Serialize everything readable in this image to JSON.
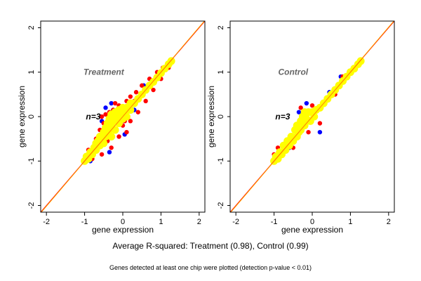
{
  "chart_data": [
    {
      "type": "scatter",
      "panel_label": "Treatment",
      "n_label": "n=3",
      "xlabel": "gene expression",
      "ylabel": "gene expression",
      "xlim": [
        -2.15,
        2.15
      ],
      "ylim": [
        -2.15,
        2.15
      ],
      "xticks": [
        "-2",
        "-1",
        "0",
        "1",
        "2"
      ],
      "yticks": [
        "-2",
        "-1",
        "0",
        "1",
        "2"
      ],
      "grid": false,
      "reference_line": "y = x",
      "series": [
        {
          "color": "#0000ff",
          "points": [
            [
              -0.3,
              0.3
            ],
            [
              -0.55,
              -0.1
            ],
            [
              -0.35,
              -0.8
            ],
            [
              0.3,
              0.15
            ],
            [
              0.05,
              -0.4
            ],
            [
              0.55,
              0.7
            ],
            [
              -0.45,
              0.2
            ],
            [
              -0.85,
              -1.0
            ],
            [
              -0.25,
              0.15
            ]
          ]
        },
        {
          "color": "#ff0000",
          "points": [
            [
              -0.55,
              0.0
            ],
            [
              -0.45,
              0.05
            ],
            [
              -0.35,
              0.1
            ],
            [
              -0.25,
              0.15
            ],
            [
              -0.2,
              0.3
            ],
            [
              -0.1,
              0.25
            ],
            [
              0.1,
              0.35
            ],
            [
              0.2,
              0.45
            ],
            [
              0.35,
              0.55
            ],
            [
              0.5,
              0.7
            ],
            [
              0.7,
              0.85
            ],
            [
              0.9,
              1.0
            ],
            [
              1.05,
              1.1
            ],
            [
              -0.6,
              -0.3
            ],
            [
              -0.7,
              -0.5
            ],
            [
              -0.9,
              -0.75
            ],
            [
              -0.5,
              -0.15
            ],
            [
              0.0,
              -0.2
            ],
            [
              0.1,
              -0.35
            ],
            [
              -0.1,
              -0.45
            ],
            [
              -0.3,
              -0.7
            ],
            [
              -0.55,
              -0.85
            ],
            [
              0.2,
              -0.1
            ],
            [
              0.4,
              0.1
            ],
            [
              0.6,
              0.35
            ],
            [
              0.8,
              0.6
            ],
            [
              1.0,
              0.85
            ],
            [
              1.2,
              1.1
            ],
            [
              -0.4,
              -0.55
            ],
            [
              -0.8,
              -0.95
            ],
            [
              -0.45,
              -0.3
            ],
            [
              0.05,
              -0.1
            ],
            [
              0.3,
              0.35
            ]
          ]
        },
        {
          "color": "#ffff00",
          "points": [
            [
              -1.0,
              -1.0
            ],
            [
              -0.95,
              -0.9
            ],
            [
              -0.9,
              -0.95
            ],
            [
              -0.85,
              -0.8
            ],
            [
              -0.8,
              -0.85
            ],
            [
              -0.75,
              -0.7
            ],
            [
              -0.7,
              -0.75
            ],
            [
              -0.7,
              -0.6
            ],
            [
              -0.65,
              -0.55
            ],
            [
              -0.6,
              -0.65
            ],
            [
              -0.6,
              -0.45
            ],
            [
              -0.55,
              -0.5
            ],
            [
              -0.5,
              -0.35
            ],
            [
              -0.5,
              -0.6
            ],
            [
              -0.45,
              -0.25
            ],
            [
              -0.45,
              -0.45
            ],
            [
              -0.4,
              -0.15
            ],
            [
              -0.4,
              -0.4
            ],
            [
              -0.35,
              -0.05
            ],
            [
              -0.35,
              -0.3
            ],
            [
              -0.3,
              0.05
            ],
            [
              -0.3,
              -0.2
            ],
            [
              -0.3,
              -0.45
            ],
            [
              -0.25,
              -0.1
            ],
            [
              -0.2,
              0.1
            ],
            [
              -0.2,
              -0.3
            ],
            [
              -0.15,
              0.0
            ],
            [
              -0.1,
              0.15
            ],
            [
              -0.1,
              -0.15
            ],
            [
              -0.05,
              0.05
            ],
            [
              0.0,
              0.2
            ],
            [
              0.0,
              -0.05
            ],
            [
              0.05,
              0.1
            ],
            [
              0.1,
              0.2
            ],
            [
              0.1,
              0.0
            ],
            [
              0.2,
              0.3
            ],
            [
              0.2,
              0.15
            ],
            [
              0.3,
              0.3
            ],
            [
              0.4,
              0.4
            ],
            [
              0.5,
              0.5
            ],
            [
              0.6,
              0.6
            ],
            [
              0.7,
              0.7
            ],
            [
              0.8,
              0.78
            ],
            [
              0.9,
              0.88
            ],
            [
              1.0,
              0.98
            ],
            [
              1.1,
              1.08
            ],
            [
              1.2,
              1.18
            ],
            [
              1.27,
              1.25
            ]
          ]
        }
      ]
    },
    {
      "type": "scatter",
      "panel_label": "Control",
      "n_label": "n=3",
      "xlabel": "gene expression",
      "ylabel": "gene expression",
      "xlim": [
        -2.15,
        2.15
      ],
      "ylim": [
        -2.15,
        2.15
      ],
      "xticks": [
        "-2",
        "-1",
        "0",
        "1",
        "2"
      ],
      "yticks": [
        "-2",
        "-1",
        "0",
        "1",
        "2"
      ],
      "grid": false,
      "reference_line": "y = x",
      "series": [
        {
          "color": "#0000ff",
          "points": [
            [
              -0.15,
              0.3
            ],
            [
              -0.35,
              0.1
            ],
            [
              0.2,
              -0.35
            ],
            [
              0.75,
              0.9
            ],
            [
              0.45,
              0.55
            ],
            [
              -0.6,
              -0.7
            ]
          ]
        },
        {
          "color": "#ff0000",
          "points": [
            [
              -0.9,
              -0.7
            ],
            [
              -0.7,
              -0.6
            ],
            [
              -0.3,
              0.2
            ],
            [
              0.0,
              0.25
            ],
            [
              0.3,
              0.3
            ],
            [
              0.8,
              0.9
            ],
            [
              -0.6,
              -0.55
            ],
            [
              0.2,
              -0.15
            ],
            [
              0.45,
              0.45
            ],
            [
              -1.0,
              -0.85
            ],
            [
              -0.5,
              -0.7
            ],
            [
              0.6,
              0.5
            ],
            [
              -0.1,
              -0.35
            ]
          ]
        },
        {
          "color": "#ffff00",
          "points": [
            [
              -1.0,
              -1.0
            ],
            [
              -0.95,
              -0.9
            ],
            [
              -0.9,
              -0.95
            ],
            [
              -0.85,
              -0.8
            ],
            [
              -0.8,
              -0.85
            ],
            [
              -0.75,
              -0.65
            ],
            [
              -0.7,
              -0.75
            ],
            [
              -0.65,
              -0.55
            ],
            [
              -0.6,
              -0.65
            ],
            [
              -0.55,
              -0.45
            ],
            [
              -0.5,
              -0.55
            ],
            [
              -0.45,
              -0.3
            ],
            [
              -0.4,
              -0.45
            ],
            [
              -0.4,
              -0.2
            ],
            [
              -0.35,
              -0.35
            ],
            [
              -0.3,
              -0.1
            ],
            [
              -0.3,
              -0.3
            ],
            [
              -0.25,
              0.0
            ],
            [
              -0.2,
              -0.2
            ],
            [
              -0.2,
              0.1
            ],
            [
              -0.15,
              -0.05
            ],
            [
              -0.1,
              0.1
            ],
            [
              -0.05,
              -0.1
            ],
            [
              0.0,
              0.1
            ],
            [
              0.05,
              0.0
            ],
            [
              0.1,
              0.15
            ],
            [
              0.2,
              0.2
            ],
            [
              0.3,
              0.3
            ],
            [
              0.4,
              0.4
            ],
            [
              0.5,
              0.5
            ],
            [
              0.6,
              0.6
            ],
            [
              0.7,
              0.7
            ],
            [
              0.8,
              0.8
            ],
            [
              0.9,
              0.9
            ],
            [
              1.0,
              1.0
            ],
            [
              1.1,
              1.08
            ],
            [
              1.2,
              1.18
            ],
            [
              1.27,
              1.25
            ]
          ]
        }
      ]
    }
  ],
  "caption": "Average R-squared: Treatment (0.98), Control (0.99)",
  "footnote": "Genes detected at least one chip were plotted (detection p-value < 0.01)"
}
